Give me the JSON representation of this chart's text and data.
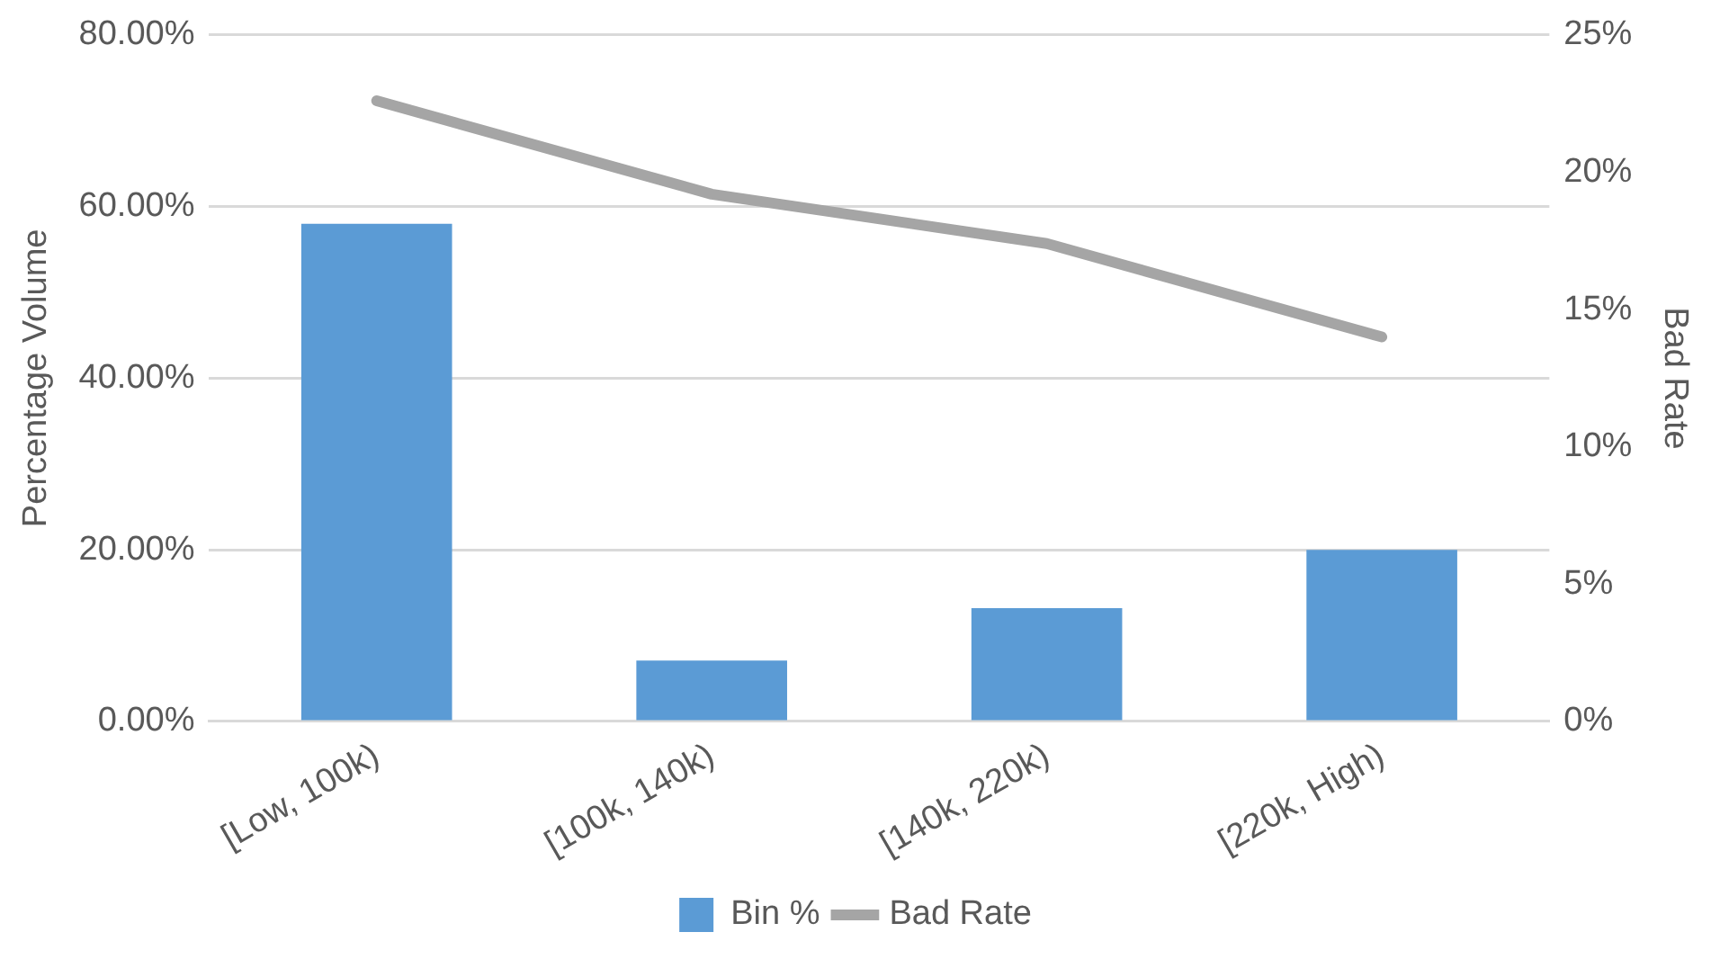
{
  "chart_data": {
    "type": "bar",
    "categories": [
      "[Low, 100k)",
      "[100k, 140k)",
      "[140k, 220k)",
      "[220k, High)"
    ],
    "series": [
      {
        "name": "Bin %",
        "color": "#5b9bd5",
        "values": [
          58.0,
          7.1,
          13.2,
          20.0
        ]
      },
      {
        "name": "Bad Rate",
        "type": "line",
        "axis": "y2",
        "color": "#a5a5a5",
        "values": [
          22.6,
          19.2,
          17.4,
          14.0
        ]
      }
    ],
    "ylabel": "Percentage Volume",
    "y2label": "Bad Rate",
    "ylim": [
      0,
      80
    ],
    "yticks": [
      {
        "value": 0,
        "label": "0.00%"
      },
      {
        "value": 20,
        "label": "20.00%"
      },
      {
        "value": 40,
        "label": "40.00%"
      },
      {
        "value": 60,
        "label": "60.00%"
      },
      {
        "value": 80,
        "label": "80.00%"
      }
    ],
    "y2lim": [
      0,
      25
    ],
    "y2ticks": [
      {
        "value": 0,
        "label": "0%"
      },
      {
        "value": 5,
        "label": "5%"
      },
      {
        "value": 10,
        "label": "10%"
      },
      {
        "value": 15,
        "label": "15%"
      },
      {
        "value": 20,
        "label": "20%"
      },
      {
        "value": 25,
        "label": "25%"
      }
    ],
    "grid": "y",
    "legend": "bottom",
    "marker": "none",
    "line_style": "solid"
  }
}
